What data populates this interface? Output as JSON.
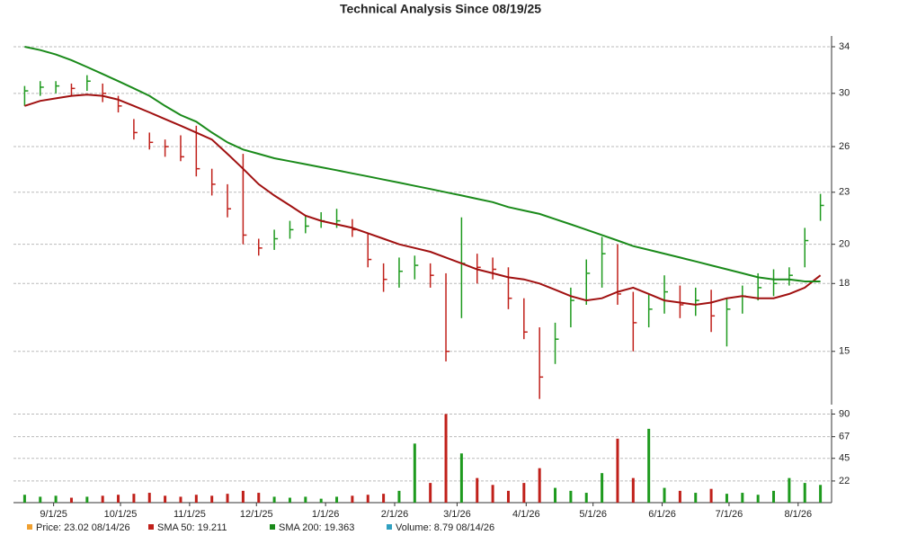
{
  "chart_data": {
    "type": "ohlc",
    "title": "Technical Analysis Since 08/19/25",
    "x": [
      "8/19/25",
      "8/26/25",
      "9/2/25",
      "9/9/25",
      "9/16/25",
      "9/23/25",
      "9/30/25",
      "10/7/25",
      "10/14/25",
      "10/21/25",
      "10/28/25",
      "11/4/25",
      "11/11/25",
      "11/18/25",
      "11/25/25",
      "12/2/25",
      "12/9/25",
      "12/16/25",
      "12/23/25",
      "12/30/25",
      "1/6/26",
      "1/13/26",
      "1/20/26",
      "1/27/26",
      "2/3/26",
      "2/10/26",
      "2/17/26",
      "2/24/26",
      "3/3/26",
      "3/10/26",
      "3/17/26",
      "3/24/26",
      "3/31/26",
      "4/7/26",
      "4/14/26",
      "4/21/26",
      "4/28/26",
      "5/5/26",
      "5/12/26",
      "5/19/26",
      "5/26/26",
      "6/2/26",
      "6/9/26",
      "6/16/26",
      "6/23/26",
      "6/30/26",
      "7/7/26",
      "7/14/26",
      "7/21/26",
      "7/28/26",
      "8/4/26",
      "8/11/26"
    ],
    "xlim": [
      "8/14/25",
      "8/16/26"
    ],
    "xticks": [
      "9/1/25",
      "10/1/25",
      "11/1/25",
      "12/1/25",
      "1/1/26",
      "2/1/26",
      "3/1/26",
      "4/1/26",
      "5/1/26",
      "6/1/26",
      "7/1/26",
      "8/1/26"
    ],
    "ylim": [
      13,
      35
    ],
    "yticks": [
      15,
      18,
      20,
      23,
      26,
      30,
      34
    ],
    "log_scale": true,
    "grid": true,
    "up_color": "#1e9a1e",
    "down_color": "#c0201a",
    "high": [
      30.6,
      31.0,
      31.0,
      30.8,
      31.5,
      30.8,
      29.8,
      28.0,
      27.0,
      26.5,
      26.8,
      27.5,
      24.5,
      23.5,
      25.5,
      20.3,
      20.8,
      21.3,
      21.6,
      21.8,
      22.0,
      21.4,
      20.6,
      19.0,
      19.3,
      19.4,
      19.0,
      18.5,
      21.5,
      19.5,
      19.3,
      18.8,
      17.3,
      16.0,
      16.2,
      17.8,
      19.2,
      20.4,
      20.0,
      17.6,
      17.5,
      18.4,
      17.9,
      17.8,
      17.7,
      17.3,
      17.9,
      18.5,
      18.7,
      18.8,
      20.9,
      22.9
    ],
    "low": [
      29.0,
      29.8,
      30.0,
      29.8,
      30.2,
      29.3,
      28.5,
      26.5,
      25.8,
      25.3,
      25.0,
      24.0,
      22.8,
      21.5,
      20.0,
      19.4,
      19.7,
      20.3,
      20.6,
      20.9,
      20.9,
      20.4,
      18.8,
      17.6,
      17.8,
      18.2,
      17.8,
      14.6,
      16.4,
      18.0,
      18.2,
      16.8,
      15.5,
      13.2,
      14.5,
      16.0,
      17.0,
      17.8,
      17.0,
      15.0,
      16.0,
      16.6,
      16.4,
      16.5,
      15.8,
      15.2,
      16.6,
      17.2,
      17.4,
      17.9,
      18.8,
      21.3
    ],
    "close": [
      30.2,
      30.5,
      30.6,
      30.4,
      31.0,
      30.0,
      29.0,
      27.0,
      26.3,
      26.0,
      25.3,
      24.5,
      23.5,
      22.0,
      20.5,
      19.8,
      20.3,
      20.8,
      21.0,
      21.3,
      21.3,
      20.8,
      19.2,
      18.2,
      18.6,
      18.9,
      18.4,
      15.0,
      19.0,
      18.8,
      18.7,
      17.3,
      15.8,
      14.0,
      15.5,
      17.2,
      18.5,
      19.5,
      17.5,
      16.2,
      16.8,
      17.6,
      17.0,
      17.2,
      16.5,
      16.8,
      17.4,
      17.8,
      18.0,
      18.4,
      20.2,
      22.2
    ],
    "series": [
      {
        "name": "SMA 50",
        "color": "#a01010",
        "values": [
          29.0,
          29.4,
          29.6,
          29.8,
          29.9,
          29.8,
          29.5,
          29.0,
          28.5,
          28.0,
          27.5,
          27.0,
          26.5,
          25.5,
          24.5,
          23.5,
          22.8,
          22.2,
          21.6,
          21.3,
          21.1,
          20.9,
          20.6,
          20.3,
          20.0,
          19.8,
          19.6,
          19.3,
          19.0,
          18.7,
          18.5,
          18.3,
          18.2,
          18.0,
          17.7,
          17.4,
          17.2,
          17.3,
          17.6,
          17.8,
          17.5,
          17.2,
          17.1,
          17.0,
          17.1,
          17.3,
          17.4,
          17.3,
          17.3,
          17.5,
          17.8,
          18.4
        ]
      },
      {
        "name": "SMA 200",
        "color": "#1a8a1a",
        "values": [
          34.0,
          33.7,
          33.3,
          32.8,
          32.2,
          31.6,
          31.0,
          30.4,
          29.8,
          29.0,
          28.3,
          27.8,
          27.0,
          26.3,
          25.8,
          25.5,
          25.2,
          25.0,
          24.8,
          24.6,
          24.4,
          24.2,
          24.0,
          23.8,
          23.6,
          23.4,
          23.2,
          23.0,
          22.8,
          22.6,
          22.4,
          22.1,
          21.9,
          21.7,
          21.4,
          21.1,
          20.8,
          20.5,
          20.2,
          19.9,
          19.7,
          19.5,
          19.3,
          19.1,
          18.9,
          18.7,
          18.5,
          18.3,
          18.2,
          18.2,
          18.1,
          18.1
        ]
      }
    ],
    "volume": [
      8,
      6,
      7,
      5,
      6,
      7,
      8,
      9,
      10,
      7,
      6,
      8,
      7,
      9,
      12,
      10,
      6,
      5,
      6,
      4,
      6,
      7,
      8,
      9,
      12,
      60,
      20,
      90,
      50,
      25,
      18,
      12,
      20,
      35,
      15,
      12,
      10,
      30,
      65,
      25,
      75,
      15,
      12,
      10,
      14,
      9,
      10,
      8,
      12,
      25,
      20,
      18
    ],
    "volume_ylim": [
      0,
      95
    ],
    "volume_yticks": [
      22,
      45,
      67,
      90
    ],
    "legend": [
      "Price: 23.02  08/14/26",
      "SMA 50: 19.211",
      "SMA 200: 19.363",
      "Volume: 8.79  08/14/26"
    ],
    "legend_colors": [
      "#f0a030",
      "#c0201a",
      "#1a8a1a",
      "#30a0c0"
    ]
  }
}
